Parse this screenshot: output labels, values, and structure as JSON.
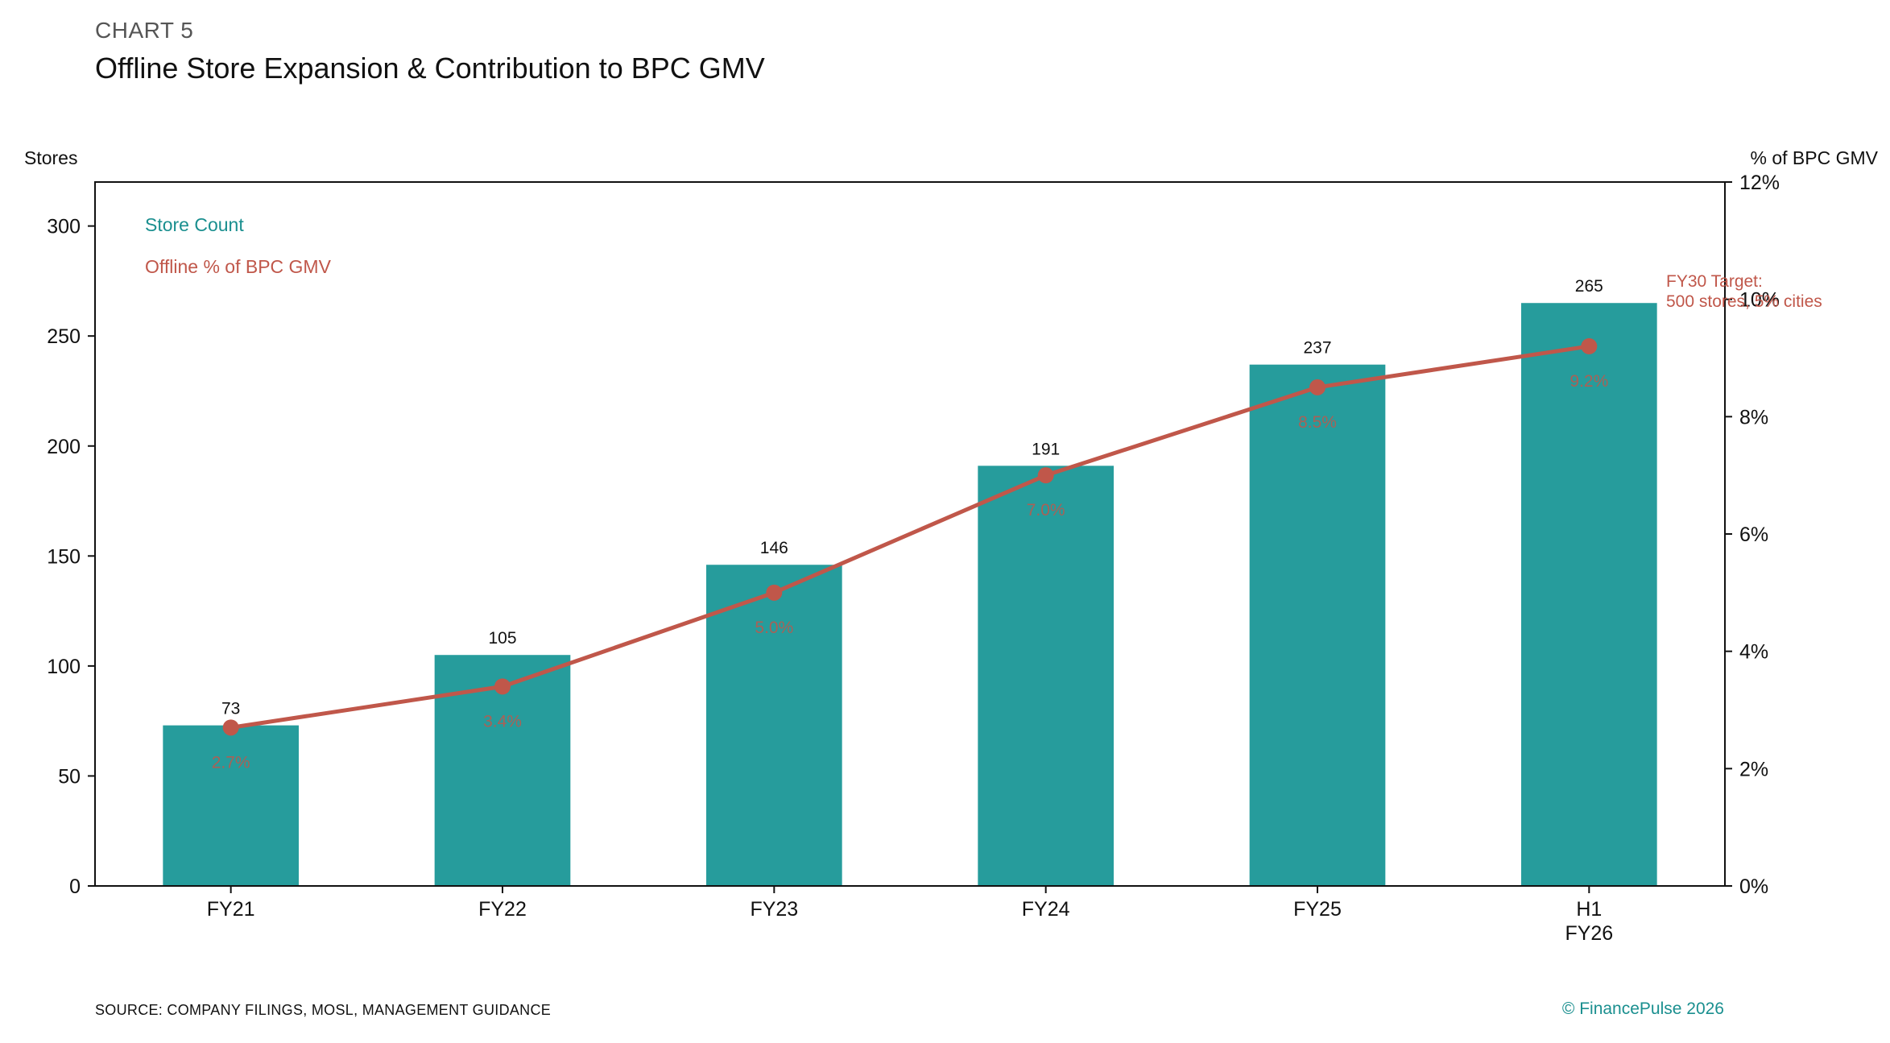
{
  "header": {
    "kicker": "CHART 5",
    "title": "Offline Store Expansion & Contribution to BPC GMV"
  },
  "footer": {
    "source": "SOURCE: COMPANY FILINGS, MOSL, MANAGEMENT GUIDANCE",
    "copyright": "© FinancePulse 2026"
  },
  "colors": {
    "bar": "#269c9c",
    "line": "#c0574a",
    "legend_store": "#1a8f8f",
    "legend_pct": "#c0574a"
  },
  "chart_data": {
    "type": "bar+line",
    "categories": [
      [
        "FY21"
      ],
      [
        "FY22"
      ],
      [
        "FY23"
      ],
      [
        "FY24"
      ],
      [
        "FY25"
      ],
      [
        "H1",
        "FY26"
      ]
    ],
    "series": [
      {
        "name": "Store Count",
        "type": "bar",
        "axis": "left",
        "values": [
          73,
          105,
          146,
          191,
          237,
          265
        ],
        "labels": [
          "73",
          "105",
          "146",
          "191",
          "237",
          "265"
        ]
      },
      {
        "name": "Offline % of BPC GMV",
        "type": "line",
        "axis": "right",
        "values": [
          2.7,
          3.4,
          5.0,
          7.0,
          8.5,
          9.2
        ],
        "labels": [
          "2.7%",
          "3.4%",
          "5.0%",
          "7.0%",
          "8.5%",
          "9.2%"
        ]
      }
    ],
    "left_axis": {
      "label": "Stores",
      "range": [
        0,
        320
      ],
      "ticks": [
        0,
        50,
        100,
        150,
        200,
        250,
        300
      ]
    },
    "right_axis": {
      "label": "% of BPC GMV",
      "range": [
        0,
        12
      ],
      "ticks": [
        0,
        2,
        4,
        6,
        8,
        10,
        12
      ],
      "tick_labels": [
        "0%",
        "2%",
        "4%",
        "6%",
        "8%",
        "10%",
        "12%"
      ]
    },
    "legend": {
      "position": "top-left",
      "items": [
        "Store Count",
        "Offline % of BPC GMV"
      ]
    },
    "annotation": {
      "lines": [
        "FY30 Target:",
        "500 stores, 5% cities"
      ]
    },
    "grid": false
  }
}
